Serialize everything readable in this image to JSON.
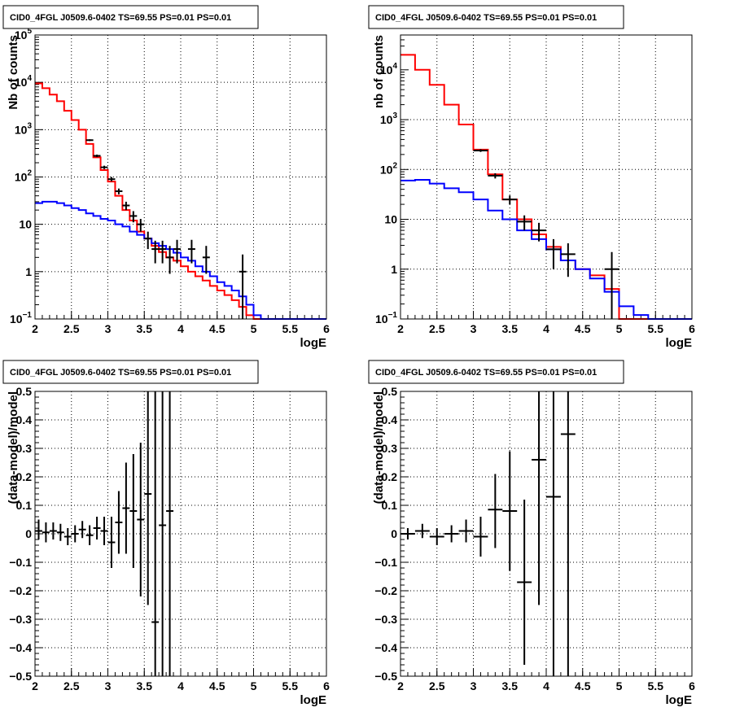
{
  "colors": {
    "model": "#ff0000",
    "background": "#0000ff",
    "data": "#000000"
  },
  "chart_data": [
    {
      "type": "histogram",
      "title": "CID0_4FGL J0509.6-0402 TS=69.55 PS=0.01 PS=0.01",
      "xlabel": "logE",
      "ylabel": "Nb of counts",
      "xlim": [
        2,
        6
      ],
      "ylim": [
        0.1,
        100000
      ],
      "ylog": true,
      "grid": true,
      "xticks": [
        "2",
        "2.5",
        "3",
        "3.5",
        "4",
        "4.5",
        "5",
        "5.5",
        "6"
      ],
      "yticks": [
        {
          "v": 0.1,
          "m": "10",
          "e": "−1"
        },
        {
          "v": 1,
          "m": "1",
          "e": ""
        },
        {
          "v": 10,
          "m": "10",
          "e": ""
        },
        {
          "v": 100,
          "m": "10",
          "e": "2"
        },
        {
          "v": 1000,
          "m": "10",
          "e": "3"
        },
        {
          "v": 10000,
          "m": "10",
          "e": "4"
        },
        {
          "v": 100000,
          "m": "10",
          "e": "5"
        }
      ],
      "bin_edges": [
        2.0,
        2.1,
        2.2,
        2.3,
        2.4,
        2.5,
        2.6,
        2.7,
        2.8,
        2.9,
        3.0,
        3.1,
        3.2,
        3.3,
        3.4,
        3.5,
        3.6,
        3.7,
        3.8,
        3.9,
        4.0,
        4.1,
        4.2,
        4.3,
        4.4,
        4.5,
        4.6,
        4.7,
        4.8,
        4.9,
        5.0,
        5.1,
        5.2,
        5.3,
        5.4,
        5.5,
        5.6,
        5.7,
        5.8,
        5.9,
        6.0
      ],
      "series": [
        {
          "role": "model",
          "values": [
            9500,
            7500,
            5500,
            4000,
            2500,
            1600,
            1000,
            500,
            260,
            140,
            80,
            40,
            20,
            12,
            7,
            5,
            3.5,
            2.6,
            2.0,
            1.7,
            1.3,
            1.0,
            0.8,
            0.65,
            0.5,
            0.4,
            0.32,
            0.25,
            0.18,
            0.12,
            0.1,
            0.1,
            0.1,
            0.1,
            0.1,
            0.1,
            0.1,
            0.1,
            0.1,
            0.1
          ]
        },
        {
          "role": "background",
          "values": [
            28,
            30,
            30,
            28,
            25,
            22,
            20,
            17,
            15,
            13,
            12,
            10,
            9,
            7,
            6,
            5,
            4,
            3.5,
            3,
            2.5,
            2,
            1.7,
            1.3,
            1.0,
            0.8,
            0.6,
            0.5,
            0.4,
            0.3,
            0.2,
            0.12,
            0.1,
            0.1,
            0.1,
            0.1,
            0.1,
            0.1,
            0.1,
            0.1,
            0.1
          ]
        }
      ],
      "points": [
        {
          "x": 2.75,
          "y": 600,
          "xerr": 0.05,
          "lo": 575,
          "hi": 625
        },
        {
          "x": 2.85,
          "y": 280,
          "xerr": 0.05,
          "lo": 263,
          "hi": 297
        },
        {
          "x": 2.95,
          "y": 160,
          "xerr": 0.05,
          "lo": 147,
          "hi": 173
        },
        {
          "x": 3.05,
          "y": 90,
          "xerr": 0.05,
          "lo": 81,
          "hi": 100
        },
        {
          "x": 3.15,
          "y": 50,
          "xerr": 0.05,
          "lo": 43,
          "hi": 57
        },
        {
          "x": 3.25,
          "y": 25,
          "xerr": 0.05,
          "lo": 20,
          "hi": 30
        },
        {
          "x": 3.35,
          "y": 15,
          "xerr": 0.05,
          "lo": 11,
          "hi": 19
        },
        {
          "x": 3.45,
          "y": 10,
          "xerr": 0.05,
          "lo": 7,
          "hi": 13
        },
        {
          "x": 3.55,
          "y": 5,
          "xerr": 0.05,
          "lo": 3,
          "hi": 7
        },
        {
          "x": 3.65,
          "y": 3,
          "xerr": 0.05,
          "lo": 1.5,
          "hi": 4.5
        },
        {
          "x": 3.75,
          "y": 3,
          "xerr": 0.05,
          "lo": 1.5,
          "hi": 4.5
        },
        {
          "x": 3.85,
          "y": 2,
          "xerr": 0.05,
          "lo": 0.9,
          "hi": 3.5
        },
        {
          "x": 3.95,
          "y": 3,
          "xerr": 0.05,
          "lo": 1.5,
          "hi": 4.7
        },
        {
          "x": 4.15,
          "y": 3,
          "xerr": 0.05,
          "lo": 1.5,
          "hi": 4.7
        },
        {
          "x": 4.35,
          "y": 2,
          "xerr": 0.05,
          "lo": 0.9,
          "hi": 3.5
        },
        {
          "x": 4.85,
          "y": 1,
          "xerr": 0.05,
          "lo": 0.1,
          "hi": 2.3
        }
      ]
    },
    {
      "type": "histogram",
      "title": "CID0_4FGL J0509.6-0402 TS=69.55 PS=0.01 PS=0.01",
      "xlabel": "logE",
      "ylabel": "nb of counts",
      "xlim": [
        2,
        6
      ],
      "ylim": [
        0.1,
        50000
      ],
      "ylog": true,
      "grid": true,
      "xticks": [
        "2",
        "2.5",
        "3",
        "3.5",
        "4",
        "4.5",
        "5",
        "5.5",
        "6"
      ],
      "yticks": [
        {
          "v": 0.1,
          "m": "10",
          "e": "−1"
        },
        {
          "v": 1,
          "m": "1",
          "e": ""
        },
        {
          "v": 10,
          "m": "10",
          "e": ""
        },
        {
          "v": 100,
          "m": "10",
          "e": "2"
        },
        {
          "v": 1000,
          "m": "10",
          "e": "3"
        },
        {
          "v": 10000,
          "m": "10",
          "e": "4"
        }
      ],
      "bin_edges": [
        2.0,
        2.2,
        2.4,
        2.6,
        2.8,
        3.0,
        3.2,
        3.4,
        3.6,
        3.8,
        4.0,
        4.2,
        4.4,
        4.6,
        4.8,
        5.0,
        5.2,
        5.4,
        5.6,
        5.8,
        6.0
      ],
      "series": [
        {
          "role": "model",
          "values": [
            20000,
            10000,
            5000,
            2000,
            800,
            250,
            80,
            25,
            10,
            5,
            2.8,
            1.5,
            1.0,
            0.75,
            0.4,
            0.1,
            0.1,
            0.1,
            0.1,
            0.1
          ]
        },
        {
          "role": "background",
          "values": [
            60,
            62,
            52,
            42,
            35,
            25,
            15,
            10,
            6,
            4,
            2.5,
            1.5,
            1.0,
            0.65,
            0.35,
            0.18,
            0.12,
            0.1,
            0.1,
            0.1
          ]
        }
      ],
      "points": [
        {
          "x": 3.1,
          "y": 240,
          "xerr": 0.1,
          "lo": 225,
          "hi": 255
        },
        {
          "x": 3.3,
          "y": 75,
          "xerr": 0.1,
          "lo": 66,
          "hi": 84
        },
        {
          "x": 3.5,
          "y": 25,
          "xerr": 0.1,
          "lo": 20,
          "hi": 30
        },
        {
          "x": 3.7,
          "y": 9,
          "xerr": 0.1,
          "lo": 6,
          "hi": 12
        },
        {
          "x": 3.9,
          "y": 6,
          "xerr": 0.1,
          "lo": 3.6,
          "hi": 8.5
        },
        {
          "x": 4.1,
          "y": 2.5,
          "xerr": 0.1,
          "lo": 1.0,
          "hi": 4.0
        },
        {
          "x": 4.3,
          "y": 2,
          "xerr": 0.1,
          "lo": 0.7,
          "hi": 3.3
        },
        {
          "x": 4.9,
          "y": 1,
          "xerr": 0.1,
          "lo": 0.1,
          "hi": 2.2
        }
      ]
    },
    {
      "type": "scatter",
      "title": "CID0_4FGL J0509.6-0402 TS=69.55 PS=0.01 PS=0.01",
      "xlabel": "logE",
      "ylabel": "(data-model)/model",
      "xlim": [
        2,
        6
      ],
      "ylim": [
        -0.5,
        0.5
      ],
      "grid": true,
      "xticks": [
        "2",
        "2.5",
        "3",
        "3.5",
        "4",
        "4.5",
        "5",
        "5.5",
        "6"
      ],
      "yticks": [
        "−0.5",
        "−0.4",
        "−0.3",
        "−0.2",
        "−0.1",
        "0",
        "0.1",
        "0.2",
        "0.3",
        "0.4",
        "0.5"
      ],
      "points": [
        {
          "x": 2.05,
          "y": 0.01,
          "xerr": 0.05,
          "lo": -0.02,
          "hi": 0.05
        },
        {
          "x": 2.15,
          "y": 0.005,
          "xerr": 0.05,
          "lo": -0.03,
          "hi": 0.04
        },
        {
          "x": 2.25,
          "y": 0.01,
          "xerr": 0.05,
          "lo": -0.02,
          "hi": 0.04
        },
        {
          "x": 2.35,
          "y": 0.005,
          "xerr": 0.05,
          "lo": -0.025,
          "hi": 0.035
        },
        {
          "x": 2.45,
          "y": -0.01,
          "xerr": 0.05,
          "lo": -0.04,
          "hi": 0.02
        },
        {
          "x": 2.55,
          "y": 0.0,
          "xerr": 0.05,
          "lo": -0.03,
          "hi": 0.03
        },
        {
          "x": 2.65,
          "y": 0.015,
          "xerr": 0.05,
          "lo": -0.015,
          "hi": 0.045
        },
        {
          "x": 2.75,
          "y": -0.005,
          "xerr": 0.05,
          "lo": -0.04,
          "hi": 0.03
        },
        {
          "x": 2.85,
          "y": 0.02,
          "xerr": 0.05,
          "lo": -0.02,
          "hi": 0.06
        },
        {
          "x": 2.95,
          "y": 0.01,
          "xerr": 0.05,
          "lo": -0.04,
          "hi": 0.06
        },
        {
          "x": 3.05,
          "y": -0.03,
          "xerr": 0.05,
          "lo": -0.12,
          "hi": 0.06
        },
        {
          "x": 3.15,
          "y": 0.04,
          "xerr": 0.05,
          "lo": -0.07,
          "hi": 0.15
        },
        {
          "x": 3.25,
          "y": 0.09,
          "xerr": 0.05,
          "lo": -0.07,
          "hi": 0.25
        },
        {
          "x": 3.35,
          "y": 0.08,
          "xerr": 0.05,
          "lo": -0.12,
          "hi": 0.28
        },
        {
          "x": 3.45,
          "y": 0.05,
          "xerr": 0.05,
          "lo": -0.22,
          "hi": 0.32
        },
        {
          "x": 3.55,
          "y": 0.14,
          "xerr": 0.05,
          "lo": -0.25,
          "hi": 0.5
        },
        {
          "x": 3.65,
          "y": -0.31,
          "xerr": 0.05,
          "lo": -0.5,
          "hi": 0.5
        },
        {
          "x": 3.75,
          "y": 0.03,
          "xerr": 0.05,
          "lo": -0.5,
          "hi": 0.5
        },
        {
          "x": 3.85,
          "y": 0.08,
          "xerr": 0.05,
          "lo": -0.5,
          "hi": 0.5
        }
      ]
    },
    {
      "type": "scatter",
      "title": "CID0_4FGL J0509.6-0402 TS=69.55 PS=0.01 PS=0.01",
      "xlabel": "logE",
      "ylabel": "(data-model)/model",
      "xlim": [
        2,
        6
      ],
      "ylim": [
        -0.5,
        0.5
      ],
      "grid": true,
      "xticks": [
        "2",
        "2.5",
        "3",
        "3.5",
        "4",
        "4.5",
        "5",
        "5.5",
        "6"
      ],
      "yticks": [
        "−0.5",
        "−0.4",
        "−0.3",
        "−0.2",
        "−0.1",
        "0",
        "0.1",
        "0.2",
        "0.3",
        "0.4",
        "0.5"
      ],
      "points": [
        {
          "x": 2.1,
          "y": 0.0,
          "xerr": 0.1,
          "lo": -0.02,
          "hi": 0.02
        },
        {
          "x": 2.3,
          "y": 0.01,
          "xerr": 0.1,
          "lo": -0.015,
          "hi": 0.035
        },
        {
          "x": 2.5,
          "y": -0.01,
          "xerr": 0.1,
          "lo": -0.04,
          "hi": 0.02
        },
        {
          "x": 2.7,
          "y": 0.0,
          "xerr": 0.1,
          "lo": -0.03,
          "hi": 0.03
        },
        {
          "x": 2.9,
          "y": 0.01,
          "xerr": 0.1,
          "lo": -0.03,
          "hi": 0.05
        },
        {
          "x": 3.1,
          "y": -0.01,
          "xerr": 0.1,
          "lo": -0.08,
          "hi": 0.06
        },
        {
          "x": 3.3,
          "y": 0.085,
          "xerr": 0.1,
          "lo": -0.05,
          "hi": 0.21
        },
        {
          "x": 3.5,
          "y": 0.08,
          "xerr": 0.1,
          "lo": -0.13,
          "hi": 0.29
        },
        {
          "x": 3.7,
          "y": -0.17,
          "xerr": 0.1,
          "lo": -0.46,
          "hi": 0.12
        },
        {
          "x": 3.9,
          "y": 0.26,
          "xerr": 0.1,
          "lo": -0.25,
          "hi": 0.5
        },
        {
          "x": 4.1,
          "y": 0.13,
          "xerr": 0.1,
          "lo": -0.5,
          "hi": 0.5
        },
        {
          "x": 4.3,
          "y": 0.35,
          "xerr": 0.1,
          "lo": -0.5,
          "hi": 0.5
        }
      ]
    }
  ]
}
